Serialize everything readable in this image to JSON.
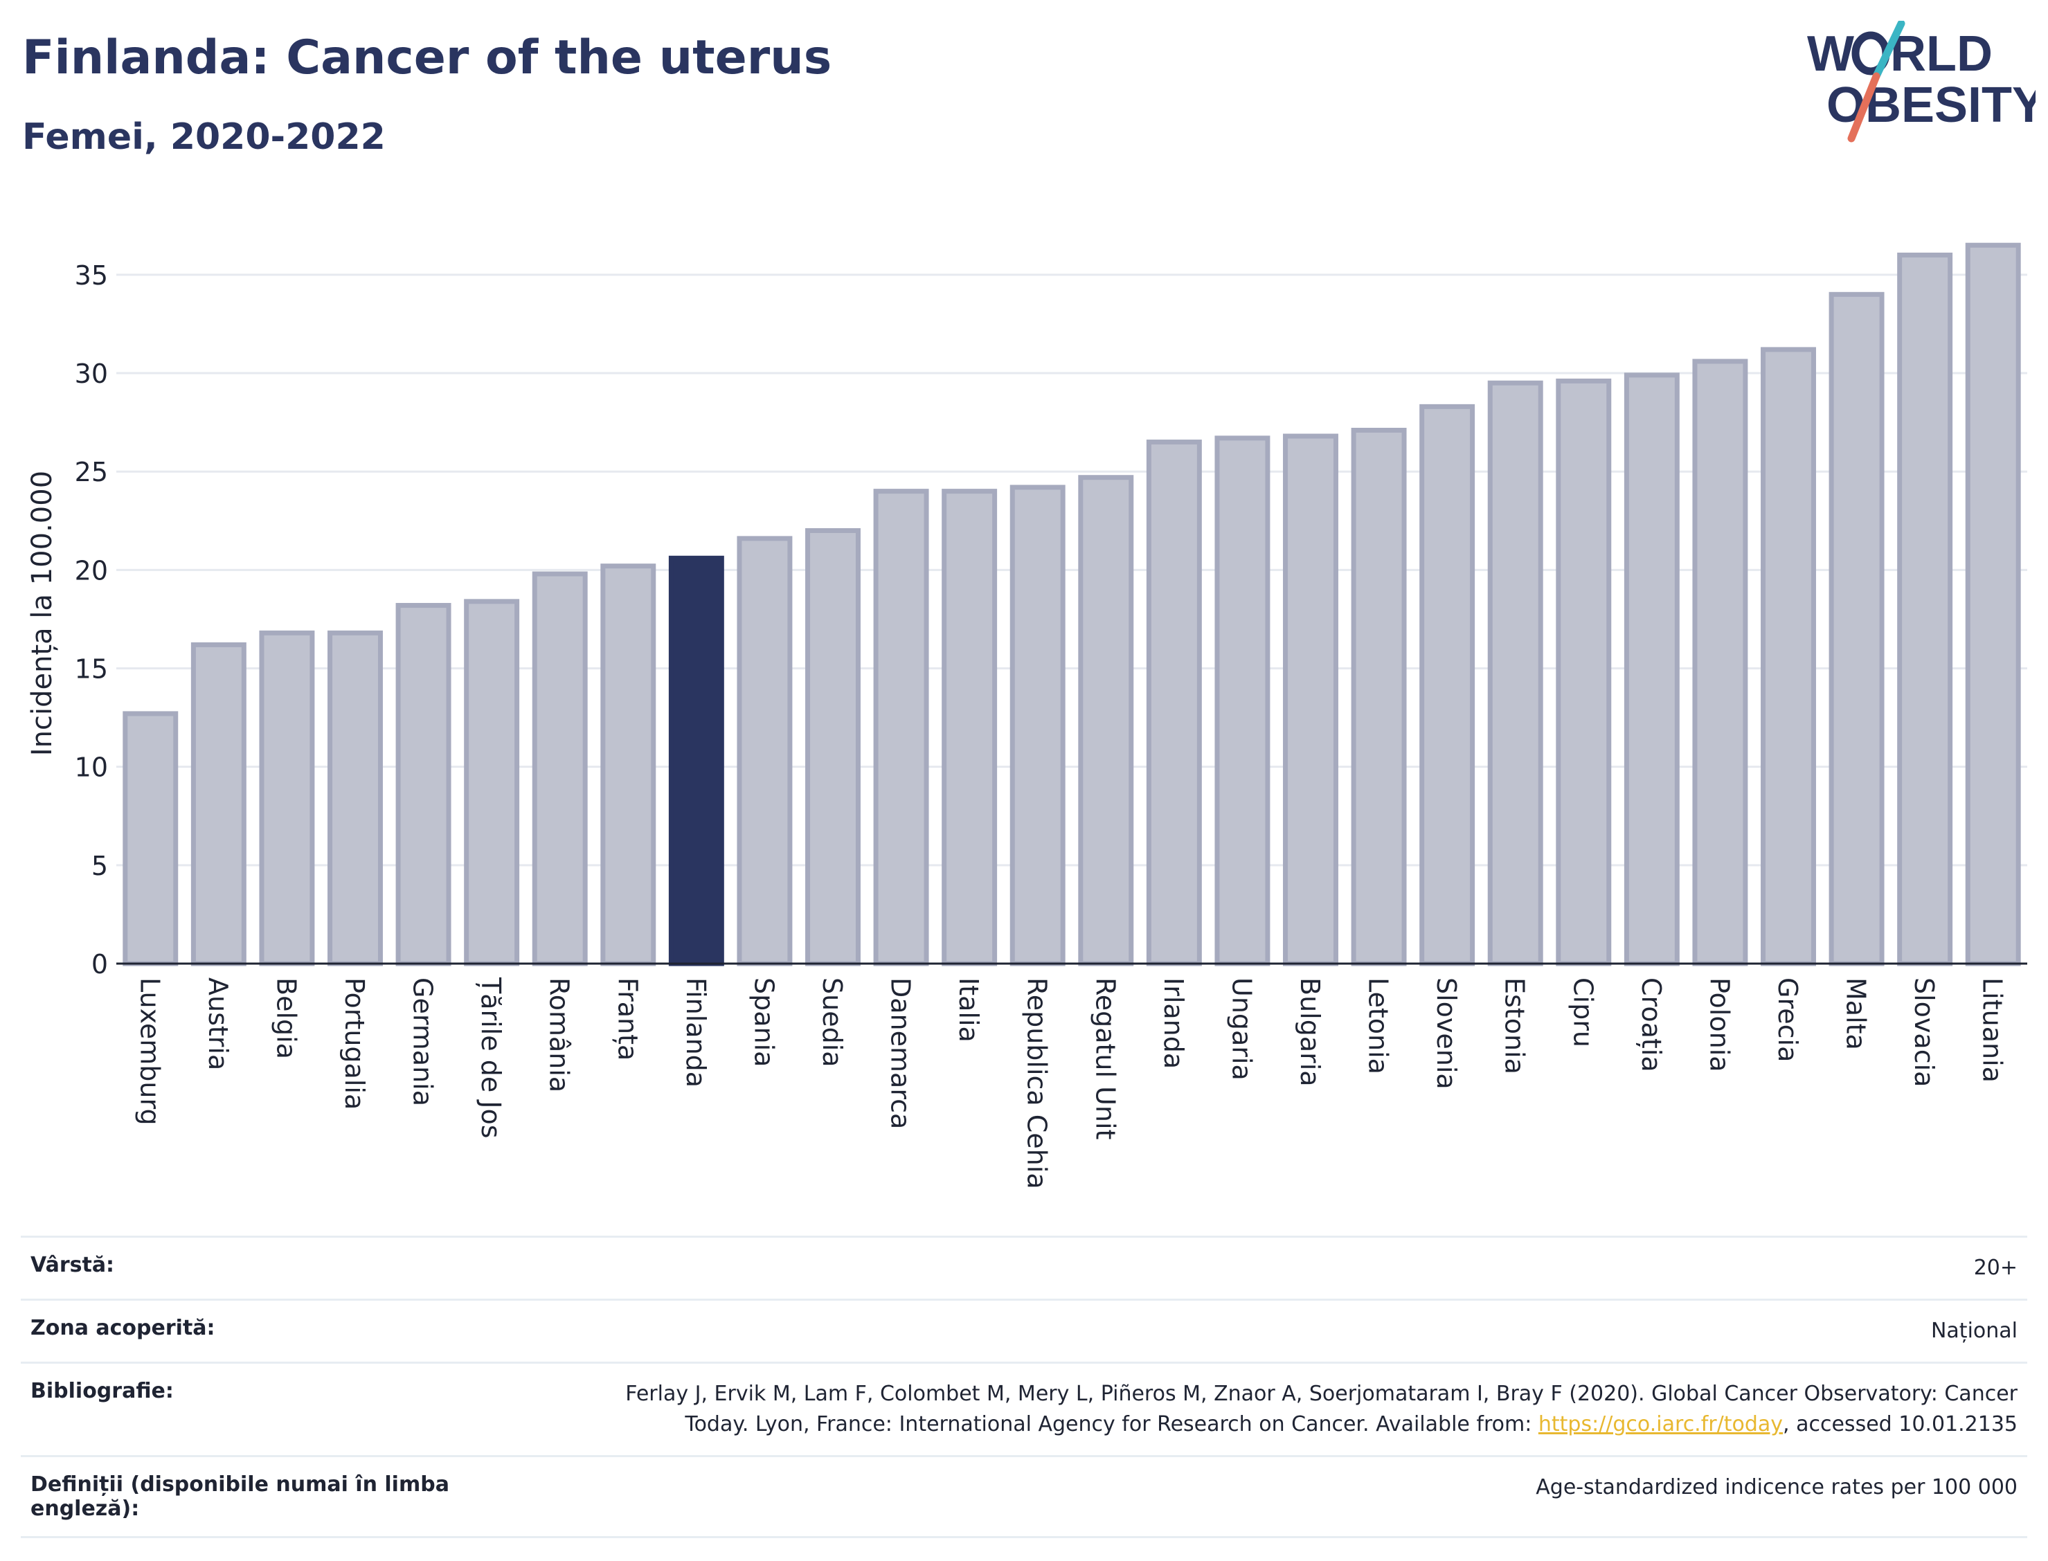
{
  "header": {
    "title": "Finlanda: Cancer of the uterus",
    "subtitle": "Femei, 2020-2022"
  },
  "logo": {
    "line1": "W",
    "line1b": "RLD",
    "line2": "OBESITY",
    "colors": {
      "text": "#2a3560",
      "slash_teal": "#3bb5c4",
      "slash_coral": "#e4705a"
    }
  },
  "colors": {
    "bar_fill": "#bfc2cf",
    "bar_stroke": "#a6aabe",
    "highlight": "#2a3560",
    "grid": "#e6e9ef",
    "axis": "#1f2433"
  },
  "chart_data": {
    "type": "bar",
    "ylabel": "Incidența la 100.000",
    "xlabel": "",
    "ylim": [
      0,
      37
    ],
    "yticks": [
      0,
      5,
      10,
      15,
      20,
      25,
      30,
      35
    ],
    "highlight": "Finlanda",
    "categories": [
      "Luxemburg",
      "Austria",
      "Belgia",
      "Portugalia",
      "Germania",
      "Țările de Jos",
      "România",
      "Franța",
      "Finlanda",
      "Spania",
      "Suedia",
      "Danemarca",
      "Italia",
      "Republica Cehia",
      "Regatul Unit",
      "Irlanda",
      "Ungaria",
      "Bulgaria",
      "Letonia",
      "Slovenia",
      "Estonia",
      "Cipru",
      "Croația",
      "Polonia",
      "Grecia",
      "Malta",
      "Slovacia",
      "Lituania"
    ],
    "values": [
      12.7,
      16.2,
      16.8,
      16.8,
      18.2,
      18.4,
      19.8,
      20.2,
      20.6,
      21.6,
      22.0,
      24.0,
      24.0,
      24.2,
      24.7,
      26.5,
      26.7,
      26.8,
      27.1,
      28.3,
      29.5,
      29.6,
      29.9,
      30.6,
      31.2,
      34.0,
      36.0,
      36.5
    ],
    "grid": true,
    "legend": "none"
  },
  "meta": [
    {
      "key": "Vârstă:",
      "value": "20+"
    },
    {
      "key": "Zona acoperită:",
      "value": "Național"
    },
    {
      "key": "Bibliografie:",
      "value_line1": "Ferlay J, Ervik M, Lam F, Colombet M, Mery L, Piñeros M, Znaor A, Soerjomataram I, Bray F (2020). Global Cancer Observatory: Cancer",
      "value_line2_pre": "Today. Lyon, France: International Agency for Research on Cancer. Available from: ",
      "link": "https://gco.iarc.fr/today",
      "value_line2_post": ", accessed 10.01.2135"
    },
    {
      "key_line1": "Definiții (disponibile numai în limba",
      "key_line2": "engleză):",
      "value": "Age-standardized indicence rates per 100 000"
    }
  ]
}
